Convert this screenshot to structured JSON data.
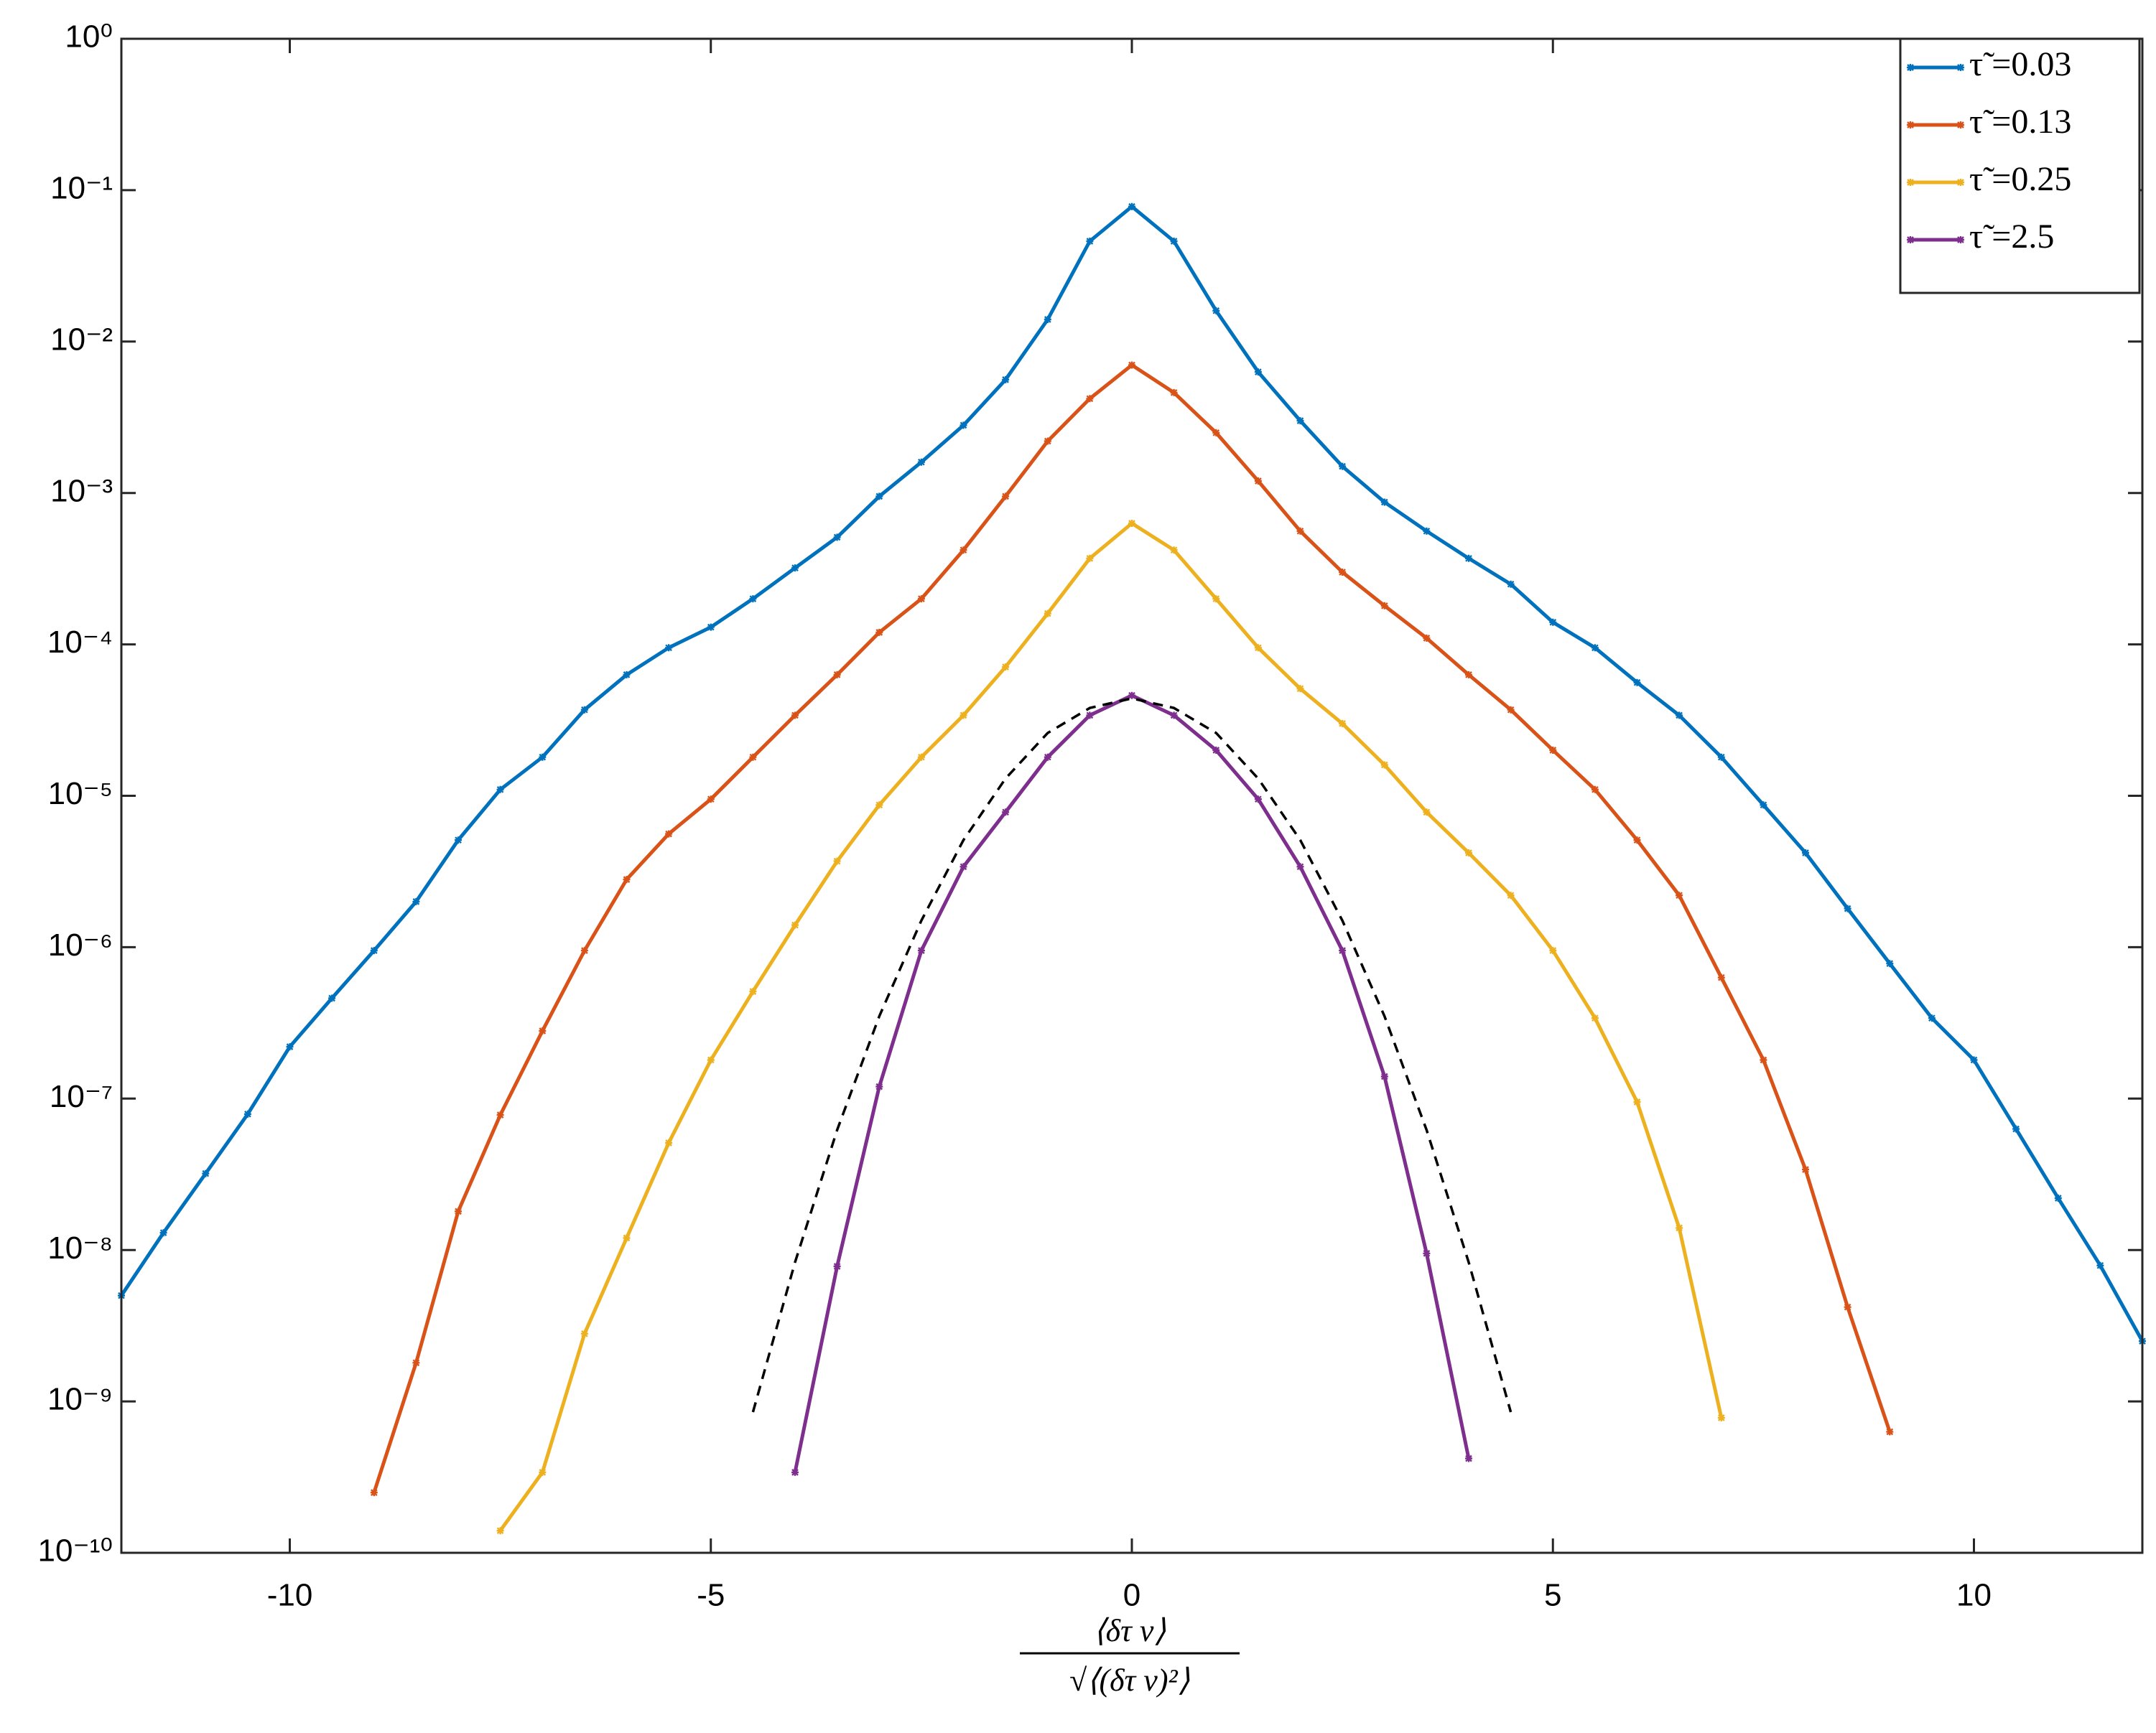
{
  "chart_data": {
    "type": "line",
    "log_y": true,
    "legend": "upper right",
    "xlabel_numerator": "⟨δτ v⟩",
    "xlabel_denominator": "√⟨(δτ v)²⟩",
    "xlim": [
      -12,
      12
    ],
    "ylim": [
      1e-10,
      1
    ],
    "xticks": [
      -10,
      -5,
      0,
      5,
      10
    ],
    "yticks": [
      {
        "value": 1,
        "label": "10⁰"
      },
      {
        "value": 0.1,
        "label": "10⁻¹"
      },
      {
        "value": 0.01,
        "label": "10⁻²"
      },
      {
        "value": 0.001,
        "label": "10⁻³"
      },
      {
        "value": 0.0001,
        "label": "10⁻⁴"
      },
      {
        "value": 1e-05,
        "label": "10⁻⁵"
      },
      {
        "value": 1e-06,
        "label": "10⁻⁶"
      },
      {
        "value": 1e-07,
        "label": "10⁻⁷"
      },
      {
        "value": 1e-08,
        "label": "10⁻⁸"
      },
      {
        "value": 1e-09,
        "label": "10⁻⁹"
      },
      {
        "value": 1e-10,
        "label": "10⁻¹⁰"
      }
    ],
    "x": [
      -12,
      -11.5,
      -11,
      -10.5,
      -10,
      -9.5,
      -9,
      -8.5,
      -8,
      -7.5,
      -7,
      -6.5,
      -6,
      -5.5,
      -5,
      -4.5,
      -4,
      -3.5,
      -3,
      -2.5,
      -2,
      -1.5,
      -1,
      -0.5,
      0,
      0.5,
      1,
      1.5,
      2,
      2.5,
      3,
      3.5,
      4,
      4.5,
      5,
      5.5,
      6,
      6.5,
      7,
      7.5,
      8,
      8.5,
      9,
      9.5,
      10,
      10.5,
      11,
      11.5,
      12
    ],
    "series": [
      {
        "name": "τ̃ =0.03",
        "color": "#0072BD",
        "values": [
          5e-09,
          1.3e-08,
          3.2e-08,
          7.9e-08,
          2.2e-07,
          4.6e-07,
          9.5e-07,
          2e-06,
          5.1e-06,
          1.1e-05,
          1.8e-05,
          3.7e-05,
          6.3e-05,
          9.5e-05,
          0.00013,
          0.0002,
          0.00032,
          0.00051,
          0.00095,
          0.0016,
          0.0028,
          0.0056,
          0.014,
          0.046,
          0.078,
          0.046,
          0.016,
          0.0063,
          0.003,
          0.0015,
          0.00087,
          0.00056,
          0.00037,
          0.00025,
          0.00014,
          9.5e-05,
          5.6e-05,
          3.4e-05,
          1.8e-05,
          8.7e-06,
          4.2e-06,
          1.8e-06,
          7.8e-07,
          3.4e-07,
          1.8e-07,
          6.3e-08,
          2.2e-08,
          7.9e-09,
          2.5e-09
        ]
      },
      {
        "name": "τ̃ =0.13",
        "color": "#D95319",
        "values": [
          null,
          null,
          null,
          null,
          null,
          null,
          2.5e-10,
          1.8e-09,
          1.8e-08,
          7.8e-08,
          2.8e-07,
          9.5e-07,
          2.8e-06,
          5.6e-06,
          9.5e-06,
          1.8e-05,
          3.4e-05,
          6.3e-05,
          0.00012,
          0.0002,
          0.00042,
          0.00095,
          0.0022,
          0.0042,
          0.007,
          0.0046,
          0.0025,
          0.0012,
          0.00056,
          0.0003,
          0.00018,
          0.00011,
          6.3e-05,
          3.7e-05,
          2e-05,
          1.1e-05,
          5.1e-06,
          2.2e-06,
          6.3e-07,
          1.8e-07,
          3.4e-08,
          4.2e-09,
          6.3e-10,
          null,
          null,
          null,
          null,
          null,
          null
        ]
      },
      {
        "name": "τ̃ =0.25",
        "color": "#EDB120",
        "values": [
          null,
          null,
          null,
          null,
          null,
          null,
          null,
          null,
          null,
          1.4e-10,
          3.4e-10,
          2.8e-09,
          1.2e-08,
          5.1e-08,
          1.8e-07,
          5.1e-07,
          1.4e-06,
          3.7e-06,
          8.7e-06,
          1.8e-05,
          3.4e-05,
          7.1e-05,
          0.00016,
          0.00037,
          0.00063,
          0.00042,
          0.0002,
          9.5e-05,
          5.1e-05,
          3e-05,
          1.6e-05,
          7.8e-06,
          4.2e-06,
          2.2e-06,
          9.5e-07,
          3.4e-07,
          9.5e-08,
          1.4e-08,
          7.8e-10,
          null,
          null,
          null,
          null,
          null,
          null,
          null,
          null,
          null,
          null
        ]
      },
      {
        "name": "τ̃ =2.5",
        "color": "#7E2F8E",
        "values": [
          null,
          null,
          null,
          null,
          null,
          null,
          null,
          null,
          null,
          null,
          null,
          null,
          null,
          null,
          null,
          null,
          3.4e-10,
          7.8e-09,
          1.2e-07,
          9.5e-07,
          3.4e-06,
          7.8e-06,
          1.8e-05,
          3.4e-05,
          4.6e-05,
          3.4e-05,
          2e-05,
          9.5e-06,
          3.4e-06,
          9.5e-07,
          1.4e-07,
          9.5e-09,
          4.2e-10,
          null,
          null,
          null,
          null,
          null,
          null,
          null,
          null,
          null,
          null,
          null,
          null,
          null,
          null,
          null,
          null
        ]
      }
    ],
    "reference_curve": {
      "color": "#000000",
      "dashed": true,
      "x": [
        -4.5,
        -4,
        -3.5,
        -3,
        -2.5,
        -2,
        -1.5,
        -1,
        -0.5,
        0,
        0.5,
        1,
        1.5,
        2,
        2.5,
        3,
        3.5,
        4,
        4.5
      ],
      "values": [
        8.5e-10,
        8.3e-09,
        6.2e-08,
        3.5e-07,
        1.5e-06,
        5.1e-06,
        1.3e-05,
        2.6e-05,
        3.8e-05,
        4.4e-05,
        3.8e-05,
        2.6e-05,
        1.3e-05,
        5.1e-06,
        1.5e-06,
        3.5e-07,
        6.2e-08,
        8.3e-09,
        8.5e-10
      ]
    }
  }
}
